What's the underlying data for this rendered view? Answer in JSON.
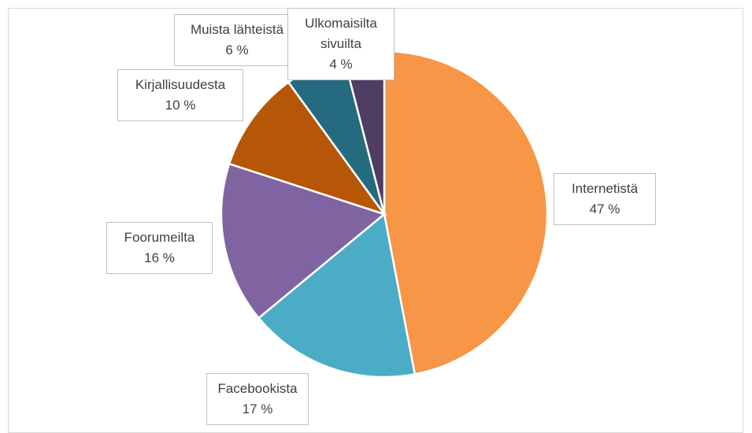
{
  "chart_data": {
    "type": "pie",
    "categories": [
      "Internetistä",
      "Facebookista",
      "Foorumeilta",
      "Kirjallisuudesta",
      "Muista lähteistä",
      "Ulkomaisilta sivuilta"
    ],
    "values": [
      47,
      17,
      16,
      10,
      6,
      4
    ],
    "value_labels": [
      "47 %",
      "17 %",
      "16 %",
      "10 %",
      "6 %",
      "4 %"
    ],
    "colors": [
      "#f79646",
      "#4bacc6",
      "#8064a2",
      "#b65708",
      "#256b7f",
      "#4f3d63"
    ]
  }
}
